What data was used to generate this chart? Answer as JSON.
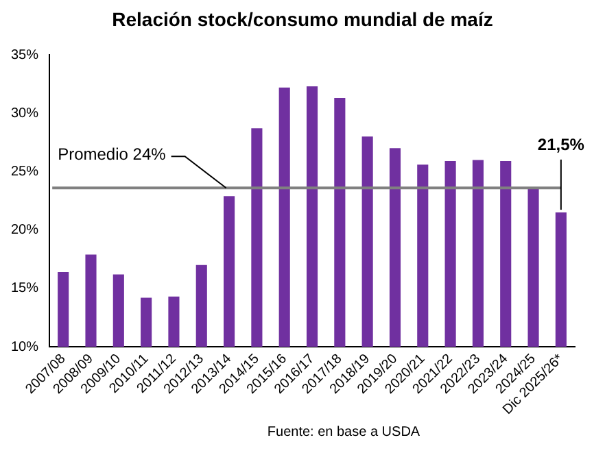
{
  "chart_data": {
    "type": "bar",
    "title": "Relación stock/consumo mundial de maíz",
    "categories": [
      "2007/08",
      "2008/09",
      "2009/10",
      "2010/11",
      "2011/12",
      "2012/13",
      "2013/14",
      "2014/15",
      "2015/16",
      "2016/17",
      "2017/18",
      "2018/19",
      "2019/20",
      "2020/21",
      "2021/22",
      "2022/23",
      "2023/24",
      "2024/25",
      "Dic 2025/26*"
    ],
    "values": [
      16.4,
      17.9,
      16.2,
      14.2,
      14.3,
      17.0,
      22.9,
      28.7,
      32.2,
      32.3,
      31.3,
      28.0,
      27.0,
      25.6,
      25.9,
      26.0,
      25.9,
      23.5,
      21.5
    ],
    "value_labels": [
      null,
      null,
      null,
      null,
      null,
      null,
      null,
      null,
      null,
      null,
      null,
      null,
      null,
      null,
      null,
      null,
      null,
      null,
      "21,5%"
    ],
    "color": "#7030a0",
    "ylim": [
      10,
      35
    ],
    "yticks": [
      {
        "value": 10,
        "label": "10%"
      },
      {
        "value": 15,
        "label": "15%"
      },
      {
        "value": 20,
        "label": "20%"
      },
      {
        "value": 25,
        "label": "25%"
      },
      {
        "value": 30,
        "label": "30%"
      },
      {
        "value": 35,
        "label": "35%"
      }
    ],
    "ref_lines": [
      {
        "axis": "y",
        "value": 23.6,
        "label": "Promedio 24%",
        "color": "#808080"
      }
    ],
    "annotations": [
      "Fuente: en base a USDA"
    ],
    "grid": false,
    "legend": false
  }
}
